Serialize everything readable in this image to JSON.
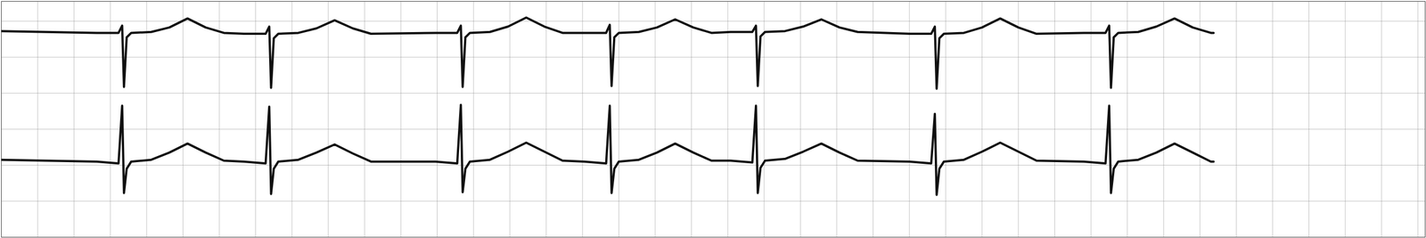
{
  "chart_data": {
    "type": "line",
    "x": [
      0,
      105,
      129,
      133,
      135,
      138,
      143,
      165,
      185,
      205,
      225,
      245,
      267,
      291,
      295,
      297,
      300,
      305,
      327,
      347,
      367,
      387,
      407,
      478,
      502,
      506,
      508,
      511,
      516,
      538,
      558,
      578,
      598,
      618,
      642,
      666,
      670,
      672,
      675,
      680,
      702,
      722,
      742,
      762,
      782,
      803,
      827,
      831,
      833,
      836,
      841,
      863,
      883,
      903,
      923,
      943,
      1000,
      1024,
      1028,
      1030,
      1033,
      1038,
      1060,
      1080,
      1100,
      1120,
      1140,
      1192,
      1216,
      1220,
      1222,
      1225,
      1230,
      1252,
      1272,
      1292,
      1312,
      1332,
      1335
    ],
    "series": [
      {
        "color": "#111111",
        "values": [
          229,
          227,
          227,
          235,
          167,
          222,
          227,
          228,
          233,
          243,
          233,
          227,
          226,
          226,
          234,
          166,
          221,
          226,
          227,
          232,
          241,
          232,
          226,
          227,
          227,
          235,
          167,
          222,
          227,
          228,
          234,
          244,
          234,
          227,
          227,
          227,
          236,
          168,
          222,
          227,
          228,
          233,
          242,
          233,
          227,
          228,
          228,
          235,
          168,
          223,
          228,
          229,
          234,
          242,
          233,
          228,
          226,
          226,
          234,
          165,
          221,
          226,
          227,
          233,
          243,
          233,
          226,
          227,
          227,
          235,
          166,
          222,
          227,
          228,
          234,
          243,
          233,
          227,
          227
        ]
      },
      {
        "color": "#111111",
        "values": [
          86,
          84,
          82,
          146,
          49,
          76,
          84,
          86,
          94,
          104,
          94,
          85,
          84,
          82,
          145,
          48,
          76,
          84,
          86,
          94,
          103,
          93,
          84,
          84,
          82,
          147,
          50,
          76,
          84,
          86,
          95,
          105,
          95,
          85,
          84,
          82,
          146,
          49,
          76,
          84,
          86,
          94,
          104,
          94,
          85,
          85,
          83,
          146,
          49,
          77,
          85,
          87,
          95,
          104,
          94,
          85,
          84,
          82,
          137,
          47,
          76,
          84,
          86,
          95,
          105,
          95,
          85,
          84,
          82,
          146,
          49,
          76,
          84,
          86,
          94,
          104,
          94,
          84,
          84
        ]
      }
    ],
    "xlim": [
      0,
      1568
    ],
    "ylim": [
      0,
      262
    ],
    "xticks": [
      0,
      40,
      80,
      120,
      160,
      200,
      240,
      280,
      320,
      360,
      400,
      440,
      480,
      520,
      560,
      600,
      640,
      680,
      720,
      760,
      800,
      840,
      880,
      920,
      960,
      1000,
      1040,
      1080,
      1120,
      1160,
      1200,
      1240,
      1280,
      1320,
      1360,
      1400,
      1440,
      1480,
      1520,
      1560
    ],
    "yticks": [
      0,
      40,
      80,
      120,
      160,
      200,
      240
    ],
    "grid": true,
    "tick_labels": false
  }
}
